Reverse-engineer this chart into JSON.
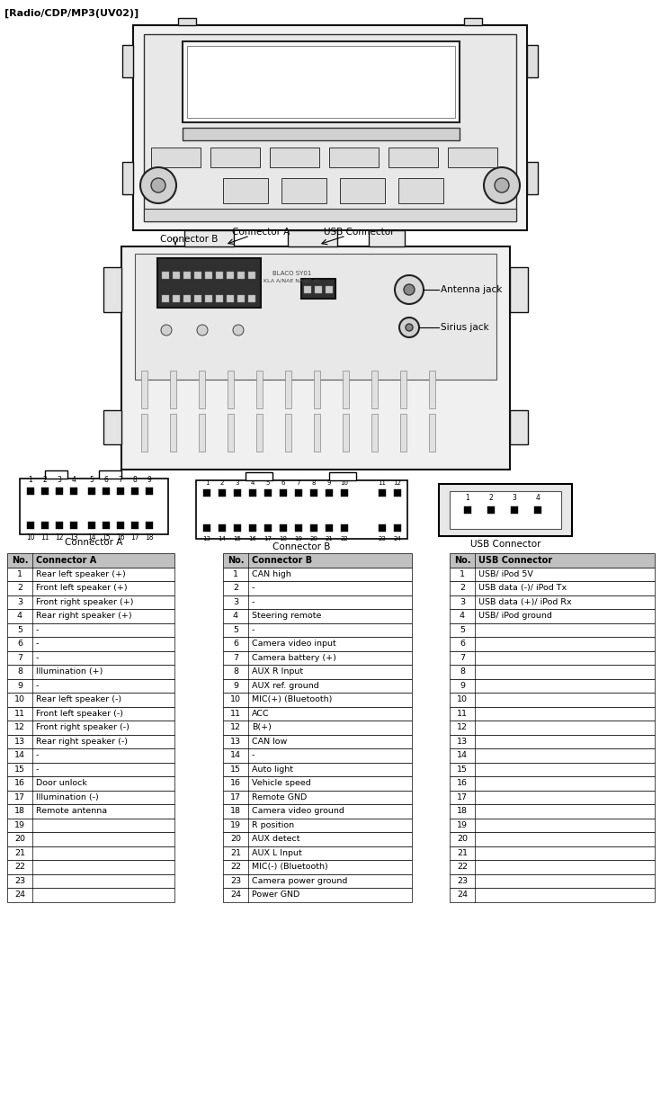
{
  "title": "[Radio/CDP/MP3(UV02)]",
  "bg_color": "#ffffff",
  "connector_a_label": "Connector A",
  "connector_b_label": "Connector B",
  "usb_label": "USB Connector",
  "conn_a_no": [
    "No.",
    "1",
    "2",
    "3",
    "4",
    "5",
    "6",
    "7",
    "8",
    "9",
    "10",
    "11",
    "12",
    "13",
    "14",
    "15",
    "16",
    "17",
    "18",
    "19",
    "20",
    "21",
    "22",
    "23",
    "24"
  ],
  "conn_a_func": [
    "Connector A",
    "Rear left speaker (+)",
    "Front left speaker (+)",
    "Front right speaker (+)",
    "Rear right speaker (+)",
    "-",
    "-",
    "-",
    "Illumination (+)",
    "-",
    "Rear left speaker (-)",
    "Front left speaker (-)",
    "Front right speaker (-)",
    "Rear right speaker (-)",
    "-",
    "-",
    "Door unlock",
    "Illumination (-)",
    "Remote antenna",
    "",
    "",
    "",
    "",
    "",
    ""
  ],
  "conn_b_no": [
    "No.",
    "1",
    "2",
    "3",
    "4",
    "5",
    "6",
    "7",
    "8",
    "9",
    "10",
    "11",
    "12",
    "13",
    "14",
    "15",
    "16",
    "17",
    "18",
    "19",
    "20",
    "21",
    "22",
    "23",
    "24"
  ],
  "conn_b_func": [
    "Connector B",
    "CAN high",
    "-",
    "-",
    "Steering remote",
    "-",
    "Camera video input",
    "Camera battery (+)",
    "AUX R Input",
    "AUX ref. ground",
    "MIC(+) (Bluetooth)",
    "ACC",
    "B(+)",
    "CAN low",
    "-",
    "Auto light",
    "Vehicle speed",
    "Remote GND",
    "Camera video ground",
    "R position",
    "AUX detect",
    "AUX L Input",
    "MIC(-) (Bluetooth)",
    "Camera power ground",
    "Power GND"
  ],
  "usb_no": [
    "No.",
    "1",
    "2",
    "3",
    "4",
    "5",
    "6",
    "7",
    "8",
    "9",
    "10",
    "11",
    "12",
    "13",
    "14",
    "15",
    "16",
    "17",
    "18",
    "19",
    "20",
    "21",
    "22",
    "23",
    "24"
  ],
  "usb_func": [
    "USB Connector",
    "USB/ iPod 5V",
    "USB data (-)/ iPod Tx",
    "USB data (+)/ iPod Rx",
    "USB/ iPod ground",
    "",
    "",
    "",
    "",
    "",
    "",
    "",
    "",
    "",
    "",
    "",
    "",
    "",
    "",
    "",
    "",
    "",
    "",
    "",
    ""
  ],
  "antenna_jack": "Antenna jack",
  "sirius_jack": "Sirius jack",
  "label_connector_b": "Connector B",
  "label_connector_a": "Connector A",
  "label_usb_connector": "USB Connector"
}
